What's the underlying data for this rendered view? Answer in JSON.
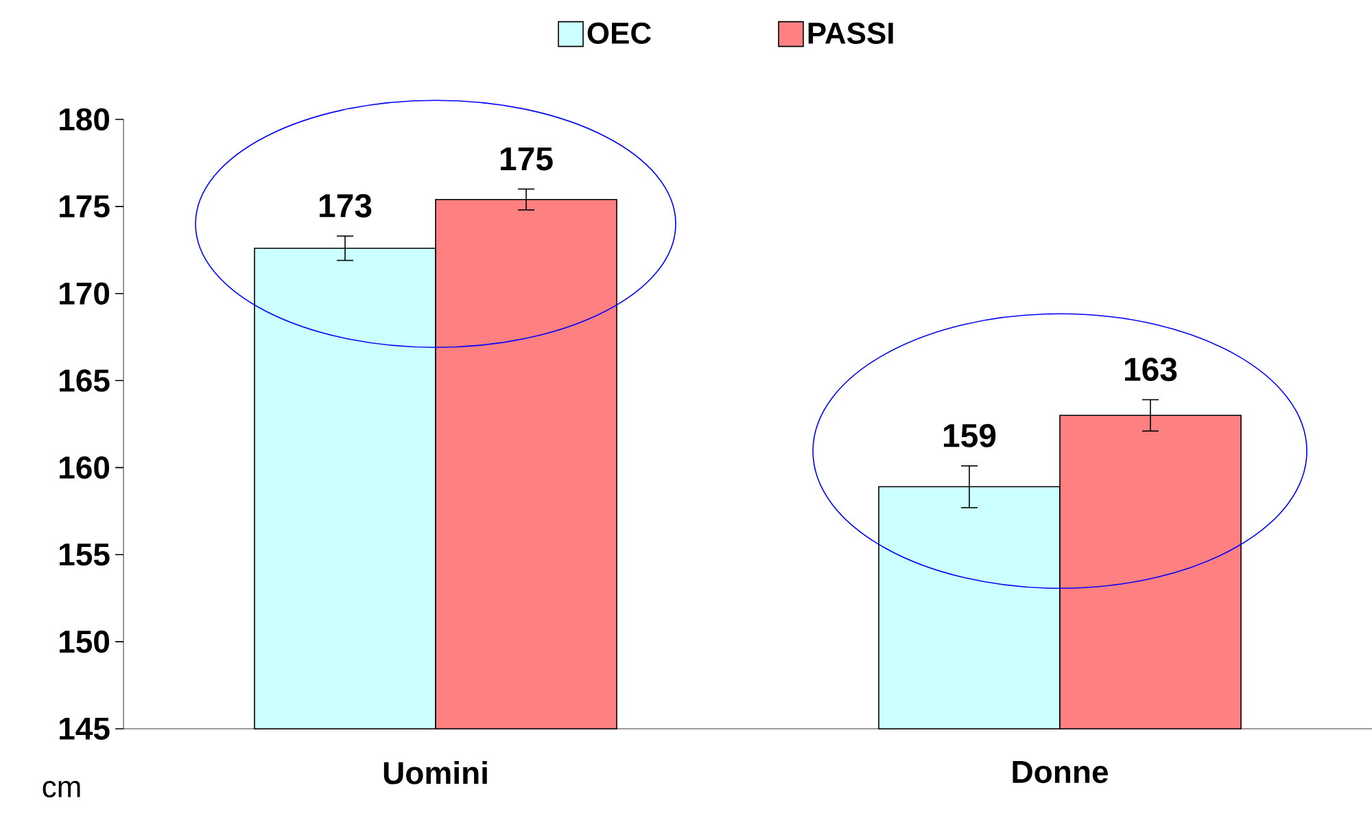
{
  "chart_data": {
    "type": "bar",
    "ylabel": "cm",
    "categories": [
      "Uomini",
      "Donne"
    ],
    "series": [
      {
        "name": "OEC",
        "color": "#ccffff",
        "values": [
          172.6,
          158.9
        ],
        "errors": [
          0.7,
          1.2
        ],
        "value_labels": [
          "173",
          "159"
        ]
      },
      {
        "name": "PASSI",
        "color": "#ff8080",
        "values": [
          175.4,
          163.0
        ],
        "errors": [
          0.6,
          0.9
        ],
        "value_labels": [
          "175",
          "163"
        ]
      }
    ],
    "ylim": [
      145,
      180
    ],
    "yticks": [
      145,
      150,
      155,
      160,
      165,
      170,
      175,
      180
    ],
    "legend": "top",
    "grid": false
  }
}
